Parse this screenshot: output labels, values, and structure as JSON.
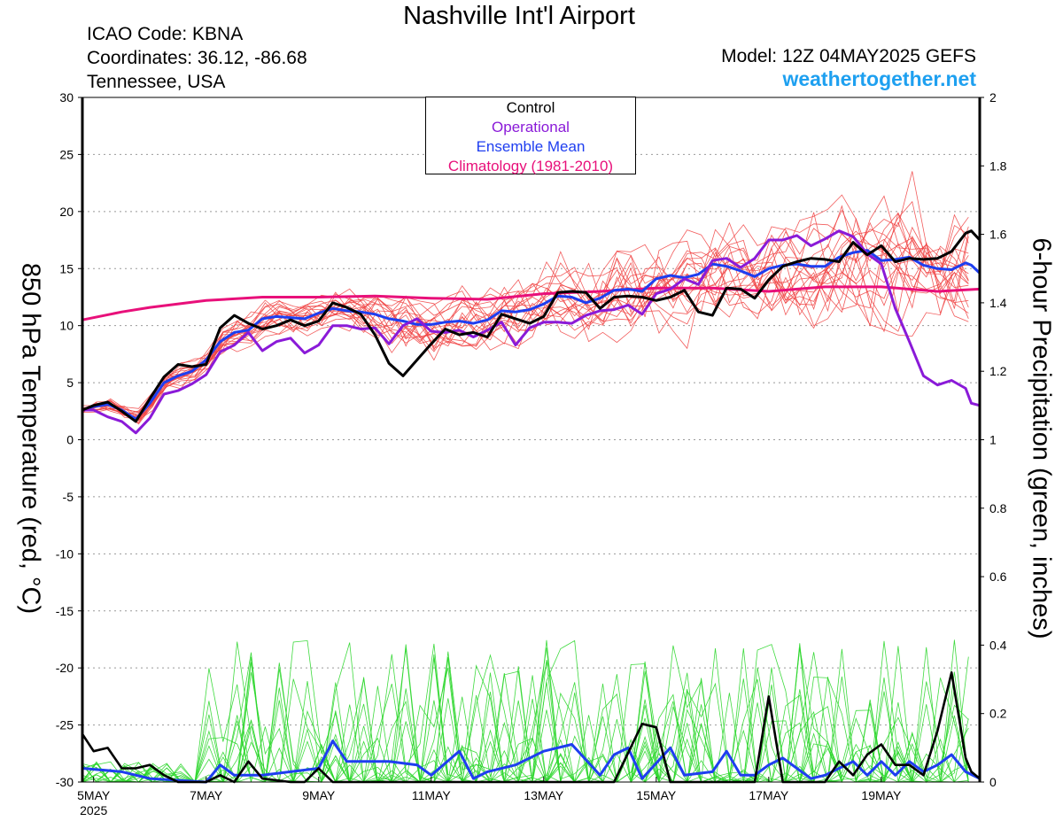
{
  "header": {
    "title": "Nashville Int'l Airport",
    "icao": "ICAO Code: KBNA",
    "coordinates": "Coordinates: 36.12, -86.68",
    "location": "Tennessee, USA",
    "model": "Model: 12Z 04MAY2025 GEFS",
    "site": "weathertogether.net"
  },
  "chart_data": {
    "type": "line",
    "ylabel_left": "850 hPa Temperature (red, °C)",
    "ylabel_right": "6-hour Precipitation (green, inches)",
    "x_unit": "days since 5MAY 00Z",
    "x_range": [
      -0.2,
      15.75
    ],
    "y_left_range": [
      -30,
      30
    ],
    "y_right_range": [
      0,
      2
    ],
    "y_left_ticks": [
      30,
      25,
      20,
      15,
      10,
      5,
      0,
      -5,
      -10,
      -15,
      -20,
      -25,
      -30
    ],
    "y_right_ticks": [
      2,
      1.8,
      1.6,
      1.4,
      1.2,
      1,
      0.8,
      0.6,
      0.4,
      0.2,
      0
    ],
    "x_ticks": [
      {
        "x": 0,
        "label": "5MAY",
        "sub": "2025"
      },
      {
        "x": 2,
        "label": "7MAY"
      },
      {
        "x": 4,
        "label": "9MAY"
      },
      {
        "x": 6,
        "label": "11MAY"
      },
      {
        "x": 8,
        "label": "13MAY"
      },
      {
        "x": 10,
        "label": "15MAY"
      },
      {
        "x": 12,
        "label": "17MAY"
      },
      {
        "x": 14,
        "label": "19MAY"
      }
    ],
    "grid": "dotted horizontal",
    "legend": {
      "position": "top-center",
      "entries": [
        {
          "name": "Control",
          "color": "#000000"
        },
        {
          "name": "Operational",
          "color": "#8a1ad8"
        },
        {
          "name": "Ensemble Mean",
          "color": "#1e3ef0"
        },
        {
          "name": "Climatology (1981-2010)",
          "color": "#e8107a"
        }
      ]
    },
    "colors": {
      "members_temp": "#f04040",
      "members_precip": "#2ad62a",
      "control": "#000000",
      "operational": "#8a1ad8",
      "mean": "#1e3ef0",
      "climatology": "#e8107a"
    },
    "temperature": {
      "control": [
        [
          -0.2,
          2.6
        ],
        [
          0,
          3.0
        ],
        [
          0.25,
          3.3
        ],
        [
          0.5,
          2.5
        ],
        [
          0.75,
          1.6
        ],
        [
          1.0,
          3.6
        ],
        [
          1.25,
          5.5
        ],
        [
          1.5,
          6.6
        ],
        [
          1.75,
          6.4
        ],
        [
          2.0,
          6.6
        ],
        [
          2.25,
          9.8
        ],
        [
          2.5,
          10.9
        ],
        [
          2.75,
          10.2
        ],
        [
          3.0,
          9.7
        ],
        [
          3.25,
          10.0
        ],
        [
          3.5,
          10.5
        ],
        [
          3.75,
          10.0
        ],
        [
          4.0,
          10.4
        ],
        [
          4.25,
          12.0
        ],
        [
          4.5,
          11.6
        ],
        [
          4.75,
          11.0
        ],
        [
          5.0,
          9.2
        ],
        [
          5.25,
          6.7
        ],
        [
          5.5,
          5.6
        ],
        [
          5.75,
          7.0
        ],
        [
          6.0,
          8.4
        ],
        [
          6.25,
          9.7
        ],
        [
          6.5,
          9.2
        ],
        [
          6.75,
          9.4
        ],
        [
          7.0,
          9.0
        ],
        [
          7.25,
          11.0
        ],
        [
          7.5,
          10.6
        ],
        [
          7.75,
          10.2
        ],
        [
          8.0,
          10.8
        ],
        [
          8.25,
          12.9
        ],
        [
          8.5,
          13.0
        ],
        [
          8.75,
          12.9
        ],
        [
          9.0,
          11.5
        ],
        [
          9.25,
          12.5
        ],
        [
          9.5,
          12.6
        ],
        [
          9.75,
          12.5
        ],
        [
          10.0,
          12.2
        ],
        [
          10.25,
          12.5
        ],
        [
          10.5,
          13.1
        ],
        [
          10.75,
          11.2
        ],
        [
          11.0,
          10.9
        ],
        [
          11.25,
          13.3
        ],
        [
          11.5,
          13.2
        ],
        [
          11.75,
          12.4
        ],
        [
          12.0,
          14.0
        ],
        [
          12.25,
          15.2
        ],
        [
          12.5,
          15.6
        ],
        [
          12.75,
          15.9
        ],
        [
          13.0,
          15.8
        ],
        [
          13.25,
          15.6
        ],
        [
          13.5,
          17.3
        ],
        [
          13.75,
          16.2
        ],
        [
          14.0,
          17.0
        ],
        [
          14.25,
          15.6
        ],
        [
          14.5,
          15.9
        ],
        [
          14.75,
          15.8
        ],
        [
          15.0,
          15.9
        ],
        [
          15.25,
          16.5
        ],
        [
          15.5,
          18.1
        ],
        [
          15.6,
          18.3
        ],
        [
          15.75,
          17.5
        ]
      ],
      "operational": [
        [
          -0.2,
          2.6
        ],
        [
          0,
          2.6
        ],
        [
          0.25,
          2.0
        ],
        [
          0.5,
          1.6
        ],
        [
          0.75,
          0.6
        ],
        [
          1.0,
          1.9
        ],
        [
          1.25,
          4.0
        ],
        [
          1.5,
          4.3
        ],
        [
          1.75,
          4.9
        ],
        [
          2.0,
          5.7
        ],
        [
          2.25,
          7.7
        ],
        [
          2.5,
          8.3
        ],
        [
          2.75,
          9.4
        ],
        [
          3.0,
          7.8
        ],
        [
          3.25,
          8.6
        ],
        [
          3.5,
          8.9
        ],
        [
          3.75,
          7.6
        ],
        [
          4.0,
          8.3
        ],
        [
          4.25,
          10.0
        ],
        [
          4.5,
          10.0
        ],
        [
          4.75,
          9.7
        ],
        [
          5.0,
          9.8
        ],
        [
          5.25,
          8.4
        ],
        [
          5.5,
          10.0
        ],
        [
          5.75,
          10.6
        ],
        [
          6.0,
          9.5
        ],
        [
          6.25,
          9.4
        ],
        [
          6.5,
          9.6
        ],
        [
          6.75,
          9.0
        ],
        [
          7.0,
          9.6
        ],
        [
          7.25,
          10.3
        ],
        [
          7.5,
          8.3
        ],
        [
          7.75,
          9.8
        ],
        [
          8.0,
          10.3
        ],
        [
          8.25,
          10.3
        ],
        [
          8.5,
          10.2
        ],
        [
          8.75,
          10.9
        ],
        [
          9.0,
          11.3
        ],
        [
          9.25,
          11.4
        ],
        [
          9.5,
          11.8
        ],
        [
          9.75,
          11.0
        ],
        [
          10.0,
          12.8
        ],
        [
          10.25,
          13.2
        ],
        [
          10.5,
          14.1
        ],
        [
          10.75,
          13.6
        ],
        [
          11.0,
          15.7
        ],
        [
          11.25,
          15.9
        ],
        [
          11.5,
          15.1
        ],
        [
          11.75,
          15.9
        ],
        [
          12.0,
          17.5
        ],
        [
          12.25,
          17.5
        ],
        [
          12.5,
          17.9
        ],
        [
          12.75,
          17.0
        ],
        [
          13.0,
          17.6
        ],
        [
          13.25,
          18.3
        ],
        [
          13.5,
          17.8
        ],
        [
          13.75,
          16.3
        ],
        [
          14.0,
          15.4
        ],
        [
          14.25,
          11.5
        ],
        [
          14.5,
          8.6
        ],
        [
          14.75,
          5.6
        ],
        [
          15.0,
          4.8
        ],
        [
          15.25,
          5.2
        ],
        [
          15.5,
          4.5
        ],
        [
          15.6,
          3.2
        ],
        [
          15.75,
          3.0
        ]
      ],
      "mean": [
        [
          -0.2,
          2.6
        ],
        [
          0,
          2.9
        ],
        [
          0.25,
          3.1
        ],
        [
          0.5,
          2.6
        ],
        [
          0.75,
          1.8
        ],
        [
          1.0,
          3.2
        ],
        [
          1.25,
          5.0
        ],
        [
          1.5,
          5.6
        ],
        [
          1.75,
          6.0
        ],
        [
          2.0,
          7.0
        ],
        [
          2.25,
          8.6
        ],
        [
          2.5,
          9.4
        ],
        [
          2.75,
          9.6
        ],
        [
          3.0,
          10.6
        ],
        [
          3.25,
          10.8
        ],
        [
          3.5,
          10.7
        ],
        [
          3.75,
          10.6
        ],
        [
          4.0,
          11.1
        ],
        [
          4.25,
          11.5
        ],
        [
          4.5,
          11.3
        ],
        [
          4.75,
          11.2
        ],
        [
          5.0,
          11.0
        ],
        [
          5.25,
          10.6
        ],
        [
          5.5,
          10.4
        ],
        [
          5.75,
          10.1
        ],
        [
          6.0,
          10.1
        ],
        [
          6.25,
          10.3
        ],
        [
          6.5,
          10.4
        ],
        [
          6.75,
          10.2
        ],
        [
          7.0,
          10.5
        ],
        [
          7.25,
          11.3
        ],
        [
          7.5,
          11.2
        ],
        [
          7.75,
          11.4
        ],
        [
          8.0,
          11.9
        ],
        [
          8.25,
          12.6
        ],
        [
          8.5,
          12.5
        ],
        [
          8.75,
          12.0
        ],
        [
          9.0,
          12.4
        ],
        [
          9.25,
          13.1
        ],
        [
          9.5,
          13.2
        ],
        [
          9.75,
          13.0
        ],
        [
          10.0,
          14.1
        ],
        [
          10.25,
          14.4
        ],
        [
          10.5,
          14.2
        ],
        [
          10.75,
          14.5
        ],
        [
          11.0,
          15.4
        ],
        [
          11.25,
          15.2
        ],
        [
          11.5,
          14.8
        ],
        [
          11.75,
          14.3
        ],
        [
          12.0,
          15.0
        ],
        [
          12.25,
          15.3
        ],
        [
          12.5,
          15.4
        ],
        [
          12.75,
          15.2
        ],
        [
          13.0,
          15.2
        ],
        [
          13.25,
          16.0
        ],
        [
          13.5,
          16.4
        ],
        [
          13.75,
          16.6
        ],
        [
          14.0,
          15.7
        ],
        [
          14.25,
          15.8
        ],
        [
          14.5,
          16.0
        ],
        [
          14.75,
          15.3
        ],
        [
          15.0,
          15.0
        ],
        [
          15.25,
          14.9
        ],
        [
          15.5,
          15.5
        ],
        [
          15.6,
          15.3
        ],
        [
          15.75,
          14.6
        ]
      ],
      "climatology": [
        [
          -0.2,
          10.5
        ],
        [
          0.5,
          11.2
        ],
        [
          1.0,
          11.6
        ],
        [
          2.0,
          12.2
        ],
        [
          3.0,
          12.5
        ],
        [
          4.0,
          12.5
        ],
        [
          5.0,
          12.6
        ],
        [
          6.0,
          12.4
        ],
        [
          7.0,
          12.3
        ],
        [
          8.0,
          12.8
        ],
        [
          9.0,
          13.0
        ],
        [
          10.0,
          13.3
        ],
        [
          11.0,
          13.3
        ],
        [
          12.0,
          13.0
        ],
        [
          13.0,
          13.4
        ],
        [
          14.0,
          13.4
        ],
        [
          15.0,
          13.0
        ],
        [
          15.75,
          13.2
        ]
      ]
    },
    "precipitation": {
      "control": [
        [
          -0.2,
          0.14
        ],
        [
          0,
          0.09
        ],
        [
          0.25,
          0.1
        ],
        [
          0.5,
          0.04
        ],
        [
          0.75,
          0.04
        ],
        [
          1.0,
          0.05
        ],
        [
          1.25,
          0.02
        ],
        [
          1.5,
          0
        ],
        [
          2.0,
          0
        ],
        [
          2.25,
          0.02
        ],
        [
          2.5,
          0
        ],
        [
          2.75,
          0.06
        ],
        [
          3.0,
          0.01
        ],
        [
          3.5,
          0
        ],
        [
          3.75,
          0
        ],
        [
          4.0,
          0.04
        ],
        [
          4.25,
          0
        ],
        [
          6.0,
          0
        ],
        [
          9.25,
          0
        ],
        [
          9.75,
          0.17
        ],
        [
          10.0,
          0.16
        ],
        [
          10.25,
          0
        ],
        [
          11.75,
          0
        ],
        [
          12.0,
          0.25
        ],
        [
          12.25,
          0
        ],
        [
          13.0,
          0
        ],
        [
          13.25,
          0.06
        ],
        [
          13.5,
          0.02
        ],
        [
          13.75,
          0.08
        ],
        [
          14.0,
          0.11
        ],
        [
          14.25,
          0.05
        ],
        [
          14.5,
          0.05
        ],
        [
          14.75,
          0.02
        ],
        [
          15.0,
          0.15
        ],
        [
          15.25,
          0.32
        ],
        [
          15.5,
          0.07
        ],
        [
          15.6,
          0.03
        ],
        [
          15.75,
          0.01
        ]
      ],
      "mean": [
        [
          -0.2,
          0.04
        ],
        [
          0.5,
          0.03
        ],
        [
          1.0,
          0.01
        ],
        [
          2.0,
          0
        ],
        [
          2.25,
          0.05
        ],
        [
          2.5,
          0.02
        ],
        [
          3.0,
          0.02
        ],
        [
          4.0,
          0.04
        ],
        [
          4.25,
          0.12
        ],
        [
          4.5,
          0.06
        ],
        [
          5.0,
          0.06
        ],
        [
          5.25,
          0.06
        ],
        [
          5.75,
          0.05
        ],
        [
          6.0,
          0.02
        ],
        [
          6.5,
          0.09
        ],
        [
          6.75,
          0.01
        ],
        [
          7.0,
          0.03
        ],
        [
          7.5,
          0.05
        ],
        [
          8.0,
          0.09
        ],
        [
          8.5,
          0.11
        ],
        [
          9.0,
          0.02
        ],
        [
          9.25,
          0.08
        ],
        [
          9.5,
          0.1
        ],
        [
          9.75,
          0.01
        ],
        [
          10.25,
          0.1
        ],
        [
          10.5,
          0.02
        ],
        [
          11.0,
          0.03
        ],
        [
          11.25,
          0.09
        ],
        [
          11.5,
          0.02
        ],
        [
          11.75,
          0.02
        ],
        [
          12.0,
          0.05
        ],
        [
          12.25,
          0.07
        ],
        [
          12.5,
          0.04
        ],
        [
          12.75,
          0.01
        ],
        [
          13.0,
          0.02
        ],
        [
          13.5,
          0.06
        ],
        [
          13.75,
          0.02
        ],
        [
          14.0,
          0.06
        ],
        [
          14.25,
          0.02
        ],
        [
          14.5,
          0.06
        ],
        [
          14.75,
          0.03
        ],
        [
          15.0,
          0.05
        ],
        [
          15.25,
          0.08
        ],
        [
          15.5,
          0.03
        ],
        [
          15.75,
          0.01
        ]
      ]
    }
  }
}
